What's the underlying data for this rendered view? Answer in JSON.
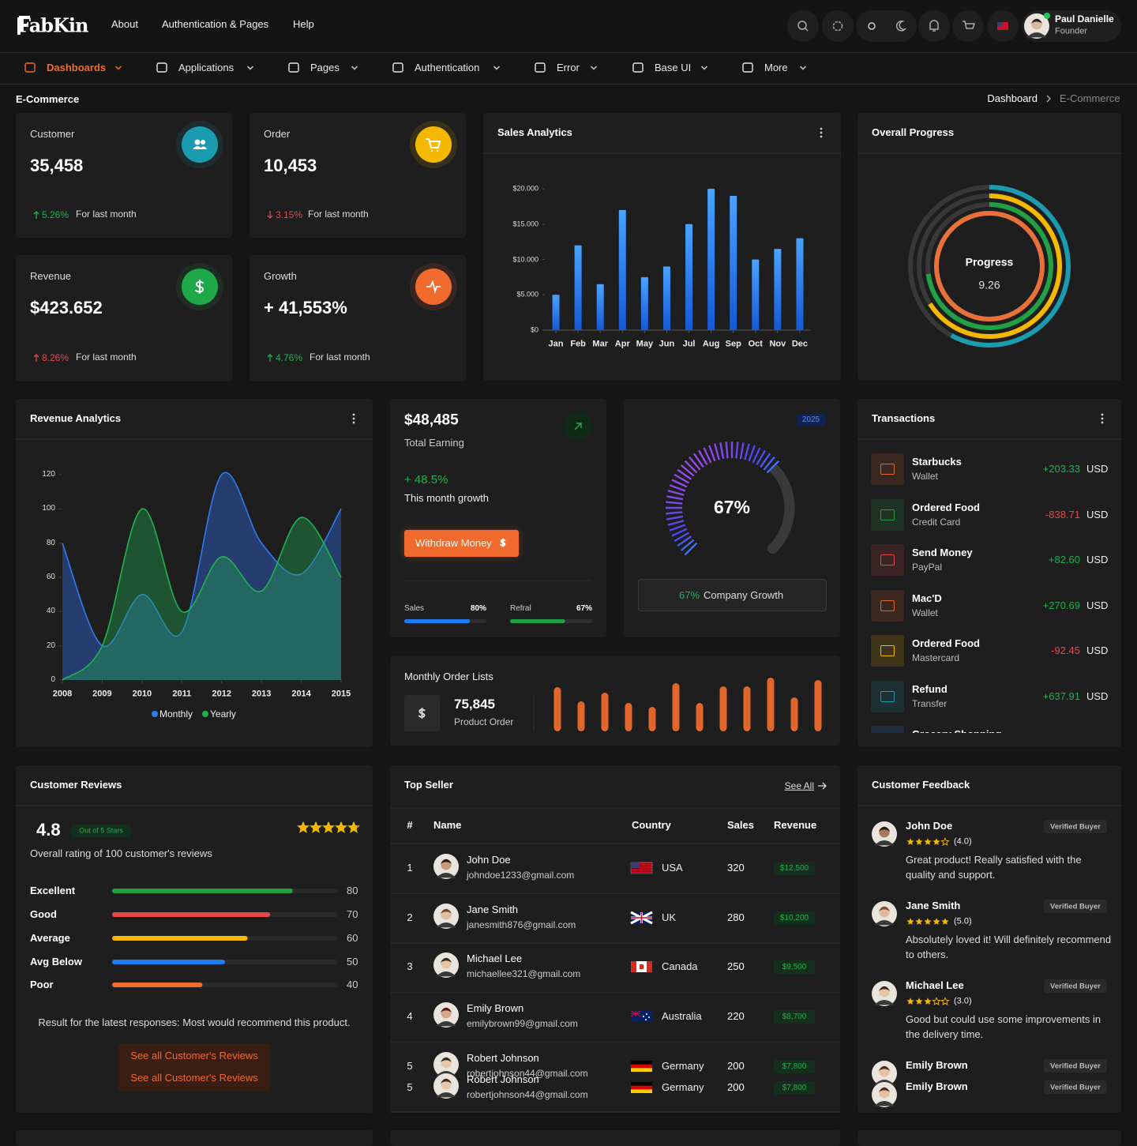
{
  "header": {
    "brand": "FabKin",
    "links": [
      "About",
      "Authentication & Pages",
      "Help"
    ],
    "user": {
      "name": "Paul Danielle",
      "role": "Founder"
    }
  },
  "menu": [
    "Dashboards",
    "Applications",
    "Pages",
    "Authentication",
    "Error",
    "Base UI",
    "More"
  ],
  "page": {
    "title": "E-Commerce",
    "breadcrumb": [
      "Dashboard",
      "E-Commerce"
    ]
  },
  "stats": [
    {
      "label": "Customer",
      "value": "35,458",
      "change": "5.26%",
      "trend": "up",
      "change_color": "#22b14c",
      "note": "For last month",
      "icon_color": "#1a9bb0"
    },
    {
      "label": "Order",
      "value": "10,453",
      "change": "3.15%",
      "trend": "down",
      "change_color": "#e5484d",
      "note": "For last month",
      "icon_color": "#f5b800"
    },
    {
      "label": "Revenue",
      "value": "$423.652",
      "change": "8.26%",
      "trend": "up",
      "change_color": "#e5484d",
      "note": "For last month",
      "icon_color": "#1fa84a"
    },
    {
      "label": "Growth",
      "value": "+ 41,553%",
      "change": "4.76%",
      "trend": "up",
      "change_color": "#22b14c",
      "note": "For last month",
      "icon_color": "#f26b2e"
    }
  ],
  "sales_analytics": {
    "type": "bar",
    "title": "Sales Analytics",
    "categories": [
      "Jan",
      "Feb",
      "Mar",
      "Apr",
      "May",
      "Jun",
      "Jul",
      "Aug",
      "Sep",
      "Oct",
      "Nov",
      "Dec"
    ],
    "values": [
      5000,
      12000,
      6500,
      17000,
      7500,
      9000,
      15000,
      20000,
      19000,
      10000,
      11500,
      13000
    ],
    "color": "#2f8cf0",
    "ylim": [
      0,
      20000
    ],
    "yticks": [
      {
        "value": 0,
        "label": "$0"
      },
      {
        "value": 5000,
        "label": "$5.000"
      },
      {
        "value": 10000,
        "label": "$10.000"
      },
      {
        "value": 15000,
        "label": "$15.000"
      },
      {
        "value": 20000,
        "label": "$20.000"
      }
    ],
    "grid": false
  },
  "overall_progress": {
    "type": "radial",
    "title": "Overall Progress",
    "label": "Progress",
    "value": 9.26,
    "rings": [
      {
        "color": "#1a9bb0",
        "value": 58
      },
      {
        "color": "#f5b800",
        "value": 66
      },
      {
        "color": "#22a045",
        "value": 73
      },
      {
        "color": "#e8703a",
        "value": 100
      }
    ]
  },
  "revenue_analytics": {
    "type": "area",
    "title": "Revenue Analytics",
    "x": [
      2008,
      2009,
      2010,
      2011,
      2012,
      2013,
      2014,
      2015
    ],
    "series": [
      {
        "name": "Monthly",
        "color": "#2f7bf0",
        "values": [
          80,
          20,
          50,
          28,
          120,
          80,
          62,
          100
        ]
      },
      {
        "name": "Yearly",
        "color": "#22b14c",
        "values": [
          0,
          20,
          100,
          40,
          72,
          52,
          95,
          60
        ]
      }
    ],
    "xlim": [
      2008,
      2015
    ],
    "xticks": [
      2008,
      2009,
      2010,
      2011,
      2012,
      2013,
      2014,
      2015
    ],
    "ylim": [
      0,
      120
    ],
    "yticks": [
      0,
      20,
      40,
      60,
      80,
      100,
      120
    ],
    "legend": "bottom"
  },
  "earning": {
    "amount": "$48,485",
    "label": "Total Earning",
    "growth": "+ 48.5%",
    "growth_label": "This month growth",
    "button": "Withdraw Money",
    "progress": [
      {
        "name": "Sales",
        "value": 80,
        "label": "80%",
        "color": "#1f7cf0"
      },
      {
        "name": "Refral",
        "value": 67,
        "label": "67%",
        "color": "#22a045"
      }
    ]
  },
  "gauge": {
    "type": "gauge",
    "badge": "2025",
    "value": 67,
    "value_label": "67%",
    "caption_value": "67%",
    "caption": "Company Growth"
  },
  "monthly_orders": {
    "type": "bar",
    "title": "Monthly Order Lists",
    "value": "75,845",
    "label": "Product Order",
    "color": "#e0662c",
    "values": [
      56,
      38,
      49,
      36,
      31,
      61,
      36,
      57,
      57,
      68,
      43,
      65
    ]
  },
  "transactions": {
    "title": "Transactions",
    "items": [
      {
        "name": "Starbucks",
        "method": "Wallet",
        "amount": "+203.33",
        "currency": "USD",
        "color": "#e0662c"
      },
      {
        "name": "Ordered Food",
        "method": "Credit Card",
        "amount": "-838.71",
        "currency": "USD",
        "color": "#22a045"
      },
      {
        "name": "Send Money",
        "method": "PayPal",
        "amount": "+82.60",
        "currency": "USD",
        "color": "#e5484d"
      },
      {
        "name": "Mac'D",
        "method": "Wallet",
        "amount": "+270.69",
        "currency": "USD",
        "color": "#e0662c"
      },
      {
        "name": "Ordered Food",
        "method": "Mastercard",
        "amount": "-92.45",
        "currency": "USD",
        "color": "#f5b800"
      },
      {
        "name": "Refund",
        "method": "Transfer",
        "amount": "+637.91",
        "currency": "USD",
        "color": "#1a9bb0"
      },
      {
        "name": "Grocery Shopping",
        "color": "#2f7bf0"
      }
    ]
  },
  "reviews": {
    "title": "Customer Reviews",
    "score": 4.8,
    "score_label": "Out of 5 Stars",
    "summary": "Overall rating of 100 customer's reviews",
    "rows": [
      {
        "name": "Excellent",
        "value": 80,
        "color": "#22a045"
      },
      {
        "name": "Good",
        "value": 70,
        "color": "#e5484d"
      },
      {
        "name": "Average",
        "value": 60,
        "color": "#f5b800"
      },
      {
        "name": "Avg Below",
        "value": 50,
        "color": "#1f7cf0"
      },
      {
        "name": "Poor",
        "value": 40,
        "color": "#f26b2e"
      }
    ],
    "result": "Result for the latest responses: Most would recommend this product.",
    "buttons": [
      "See all Customer's Reviews",
      "See all Customer's Reviews"
    ]
  },
  "top_seller": {
    "title": "Top Seller",
    "see_all": "See All",
    "columns": [
      "#",
      "Name",
      "Country",
      "Sales",
      "Revenue"
    ],
    "rows": [
      {
        "rank": 1,
        "name": "John Doe",
        "email": "johndoe1233@gmail.com",
        "country": "USA",
        "sales": 320,
        "revenue": "$12,500"
      },
      {
        "rank": 2,
        "name": "Jane Smith",
        "email": "janesmith876@gmail.com",
        "country": "UK",
        "sales": 280,
        "revenue": "$10,200"
      },
      {
        "rank": 3,
        "name": "Michael Lee",
        "email": "michaellee321@gmail.com",
        "country": "Canada",
        "sales": 250,
        "revenue": "$9,500"
      },
      {
        "rank": 4,
        "name": "Emily Brown",
        "email": "emilybrown99@gmail.com",
        "country": "Australia",
        "sales": 220,
        "revenue": "$8,700"
      },
      {
        "rank": 5,
        "name": "Robert Johnson",
        "email": "robertjohnson44@gmail.com",
        "country": "Germany",
        "sales": 200,
        "revenue": "$7,800"
      },
      {
        "rank": 5,
        "name": "Robert Johnson",
        "email": "robertjohnson44@gmail.com",
        "country": "Germany",
        "sales": 200,
        "revenue": "$7,800"
      }
    ]
  },
  "feedback": {
    "title": "Customer Feedback",
    "items": [
      {
        "name": "John Doe",
        "badge": "Verified Buyer",
        "rating": 4,
        "rating_label": "(4.0)",
        "text": "Great product! Really satisfied with the quality and support."
      },
      {
        "name": "Jane Smith",
        "badge": "Verified Buyer",
        "rating": 5,
        "rating_label": "(5.0)",
        "text": "Absolutely loved it! Will definitely recommend to others."
      },
      {
        "name": "Michael Lee",
        "badge": "Verified Buyer",
        "rating": 3,
        "rating_label": "(3.0)",
        "text": "Good but could use some improvements in the delivery time."
      },
      {
        "name": "Emily Brown",
        "badge": "Verified Buyer"
      },
      {
        "name": "Emily Brown",
        "badge": "Verified Buyer"
      }
    ]
  }
}
